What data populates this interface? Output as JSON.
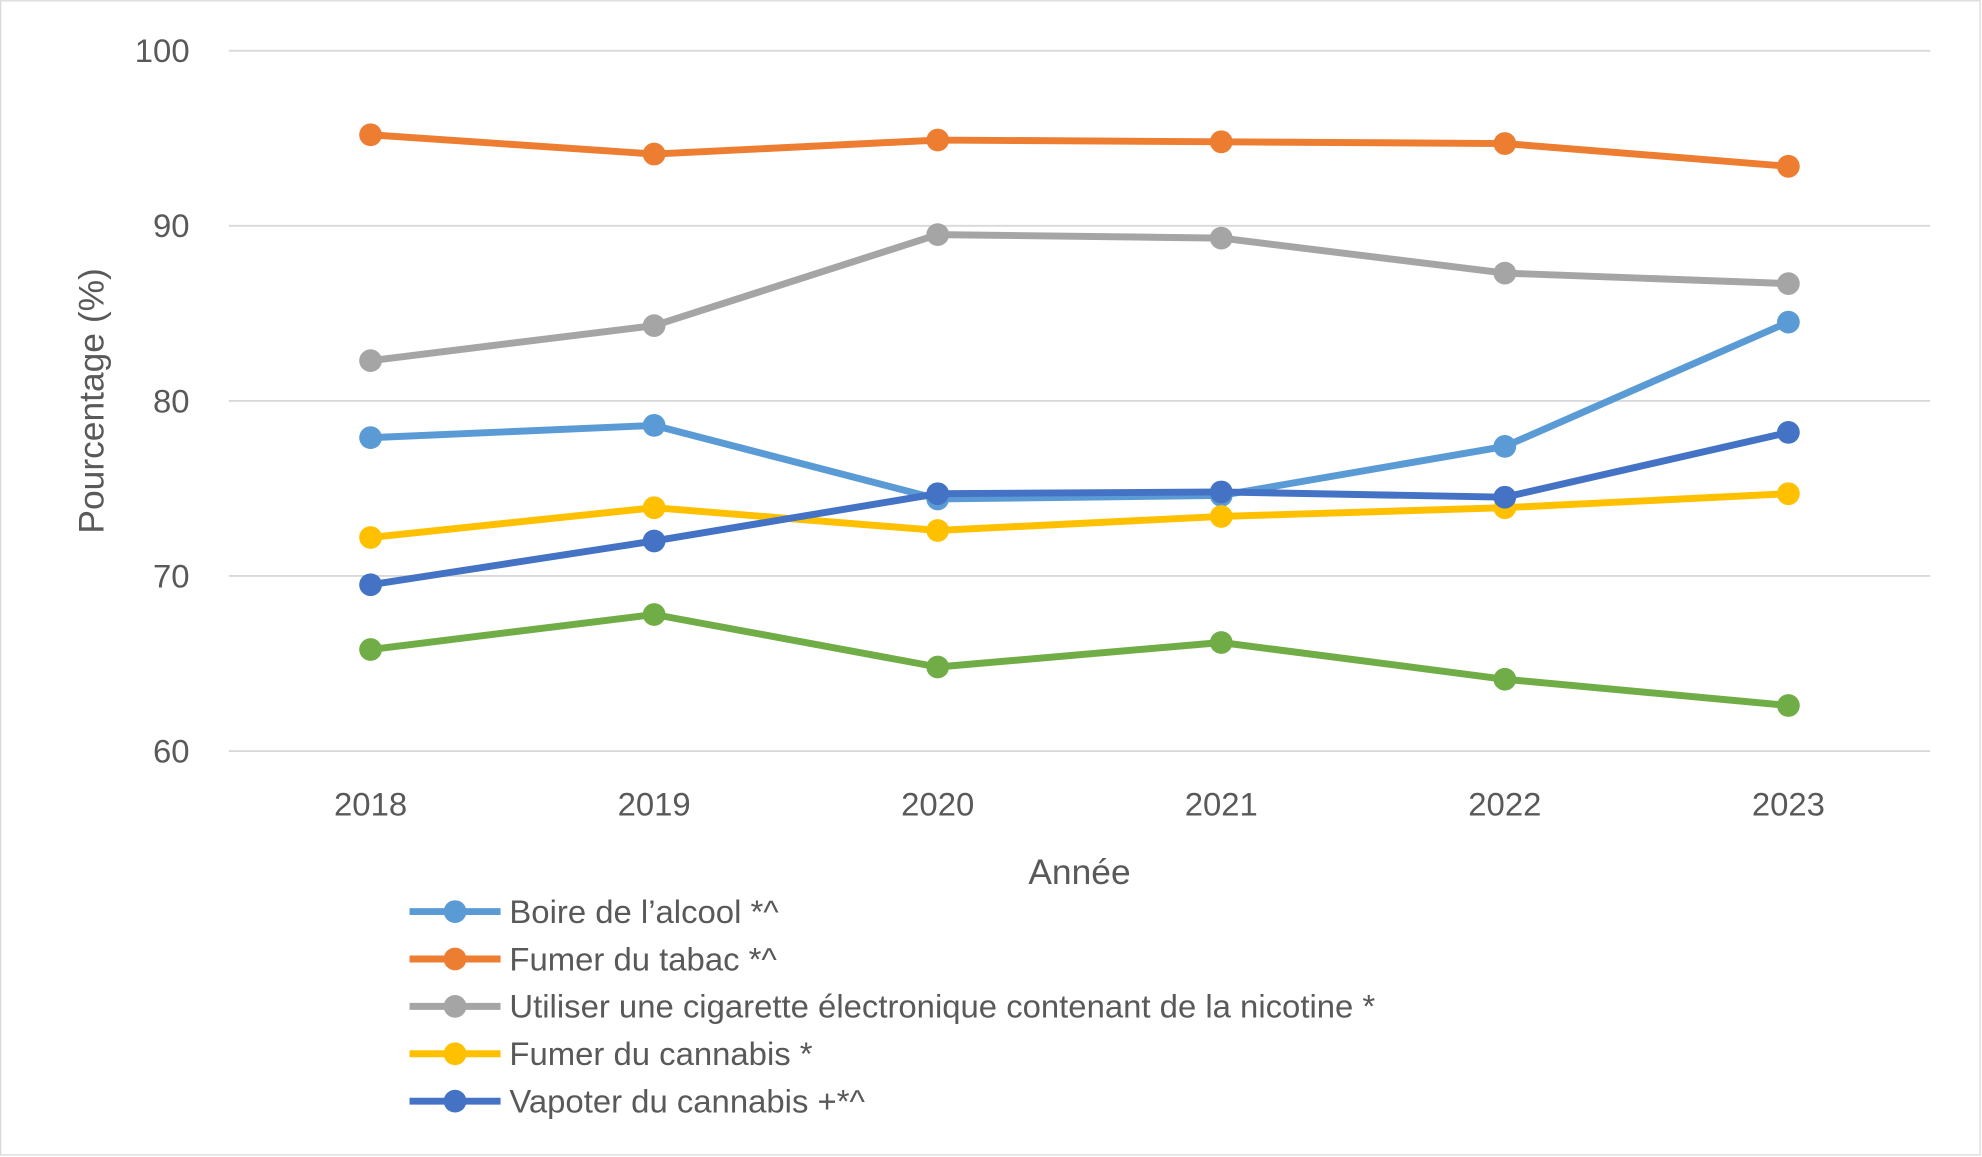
{
  "chart_data": {
    "type": "line",
    "title": "",
    "xlabel": "Année",
    "ylabel": "Pourcentage (%)",
    "ylim": [
      60,
      100
    ],
    "yticks": [
      60,
      70,
      80,
      90,
      100
    ],
    "grid": true,
    "legend_position": "bottom",
    "categories": [
      "2018",
      "2019",
      "2020",
      "2021",
      "2022",
      "2023"
    ],
    "series": [
      {
        "name": "Boire de l’alcool *^",
        "color": "#5B9BD5",
        "values": [
          77.9,
          78.6,
          74.4,
          74.6,
          77.4,
          84.5
        ]
      },
      {
        "name": "Fumer du tabac *^",
        "color": "#ED7D31",
        "values": [
          95.2,
          94.1,
          94.9,
          94.8,
          94.7,
          93.4
        ]
      },
      {
        "name": "Utiliser une cigarette électronique contenant de la nicotine *",
        "color": "#A5A5A5",
        "values": [
          82.3,
          84.3,
          89.5,
          89.3,
          87.3,
          86.7
        ]
      },
      {
        "name": "Fumer du cannabis *",
        "color": "#FFC000",
        "values": [
          72.2,
          73.9,
          72.6,
          73.4,
          73.9,
          74.7
        ]
      },
      {
        "name": "Vapoter du cannabis +*^",
        "color": "#4472C4",
        "values": [
          69.5,
          72.0,
          74.7,
          74.8,
          74.5,
          78.2
        ]
      },
      {
        "color": "#70AD47",
        "values": [
          65.8,
          67.8,
          64.8,
          66.2,
          64.1,
          62.6
        ]
      }
    ]
  }
}
